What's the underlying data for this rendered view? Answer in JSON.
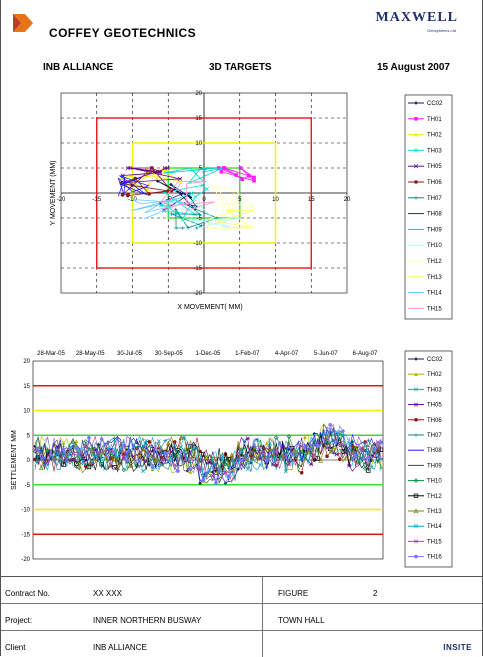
{
  "header": {
    "company": "COFFEY GEOTECHNICS",
    "maxwell_logo": "MAXWELL",
    "maxwell_sub": "Geosystems Ltd",
    "client_label": "INB ALLIANCE",
    "chart_label": "3D TARGETS",
    "date": "15 August 2007"
  },
  "colors": {
    "red": "#e8141a",
    "yellow": "#f0f000",
    "green": "#33dd33",
    "navy": "#0a1a6a"
  },
  "chart_data": [
    {
      "type": "scatter",
      "title": "",
      "xlabel": "X MOVEMENT( MM)",
      "ylabel": "Y MOVEMENT (MM)",
      "xlim": [
        -20,
        20
      ],
      "ylim": [
        -20,
        20
      ],
      "x_ticks": [
        "-20",
        "-15",
        "-10",
        "-5",
        "0",
        "5",
        "10",
        "15",
        "20"
      ],
      "y_ticks": [
        "20",
        "15",
        "10",
        "5",
        "-5",
        "-10",
        "-15",
        "-20"
      ],
      "grid": true,
      "limit_squares": [
        {
          "color": "red",
          "half_width": 15
        },
        {
          "color": "yellow",
          "half_width": 10
        },
        {
          "color": "green",
          "half_width": 5
        }
      ],
      "legend_position": "right",
      "series": [
        {
          "name": "CC02",
          "color": "#0a1a6a",
          "marker": "diamond"
        },
        {
          "name": "TH01",
          "color": "#ff1aff",
          "marker": "square"
        },
        {
          "name": "TH02",
          "color": "#f0f000",
          "marker": "triangle"
        },
        {
          "name": "TH03",
          "color": "#00dddd",
          "marker": "x"
        },
        {
          "name": "TH05",
          "color": "#6a0a8a",
          "marker": "star"
        },
        {
          "name": "TH06",
          "color": "#8a1a1a",
          "marker": "circle"
        },
        {
          "name": "TH07",
          "color": "#008a8a",
          "marker": "plus"
        },
        {
          "name": "TH08",
          "color": "#1a1aff",
          "marker": "none"
        },
        {
          "name": "TH09",
          "color": "#00cccc",
          "marker": "none"
        },
        {
          "name": "TH10",
          "color": "#aaffff",
          "marker": "none"
        },
        {
          "name": "TH12",
          "color": "#ffffaa",
          "marker": "none"
        },
        {
          "name": "TH13",
          "color": "#ffff66",
          "marker": "none"
        },
        {
          "name": "TH14",
          "color": "#66ccff",
          "marker": "none"
        },
        {
          "name": "TH15",
          "color": "#ff99cc",
          "marker": "none"
        }
      ],
      "point_cloud": {
        "x_range": [
          -12,
          7
        ],
        "y_range": [
          -7,
          5
        ]
      }
    },
    {
      "type": "line",
      "title": "",
      "xlabel": "",
      "ylabel": "SETTLEMENT MM",
      "x_ticks": [
        "28-Mar-05",
        "28-May-05",
        "30-Jul-05",
        "30-Sep-05",
        "1-Dec-05",
        "1-Feb-07",
        "4-Apr-07",
        "5-Jun-07",
        "6-Aug-07"
      ],
      "ylim": [
        -20,
        20
      ],
      "y_ticks": [
        "20",
        "15",
        "10",
        "5",
        "0",
        "-5",
        "-10",
        "-15",
        "-20"
      ],
      "limit_lines": [
        {
          "value": 15,
          "color": "red"
        },
        {
          "value": 10,
          "color": "yellow"
        },
        {
          "value": 5,
          "color": "green"
        },
        {
          "value": -5,
          "color": "green"
        },
        {
          "value": -10,
          "color": "yellow"
        },
        {
          "value": -15,
          "color": "red"
        }
      ],
      "legend_position": "right",
      "series": [
        {
          "name": "CC02",
          "color": "#0a1a6a",
          "marker": "diamond"
        },
        {
          "name": "TH02",
          "color": "#b0b000",
          "marker": "triangle"
        },
        {
          "name": "TH03",
          "color": "#00aacc",
          "marker": "x"
        },
        {
          "name": "TH05",
          "color": "#6a0a8a",
          "marker": "star"
        },
        {
          "name": "TH06",
          "color": "#8a1a1a",
          "marker": "circle"
        },
        {
          "name": "TH07",
          "color": "#008a8a",
          "marker": "plus"
        },
        {
          "name": "TH08",
          "color": "#1a1aff",
          "marker": "none"
        },
        {
          "name": "TH09",
          "color": "#444444",
          "marker": "none"
        },
        {
          "name": "TH10",
          "color": "#008a44",
          "marker": "diamond-open"
        },
        {
          "name": "TH12",
          "color": "#000000",
          "marker": "square-open"
        },
        {
          "name": "TH13",
          "color": "#808000",
          "marker": "triangle-open"
        },
        {
          "name": "TH14",
          "color": "#00aacc",
          "marker": "x"
        },
        {
          "name": "TH15",
          "color": "#aa44aa",
          "marker": "star"
        },
        {
          "name": "TH16",
          "color": "#7777ff",
          "marker": "circle"
        }
      ]
    }
  ],
  "footer": {
    "contract_label": "Contract No.",
    "contract_value": "XX XXX",
    "figure_label": "FIGURE",
    "figure_value": "2",
    "project_label": "Project:",
    "project_value": "INNER NORTHERN BUSWAY",
    "location_value": "TOWN HALL",
    "client_label": "Client",
    "client_value": "INB ALLIANCE",
    "insite_logo": "INSITE"
  }
}
